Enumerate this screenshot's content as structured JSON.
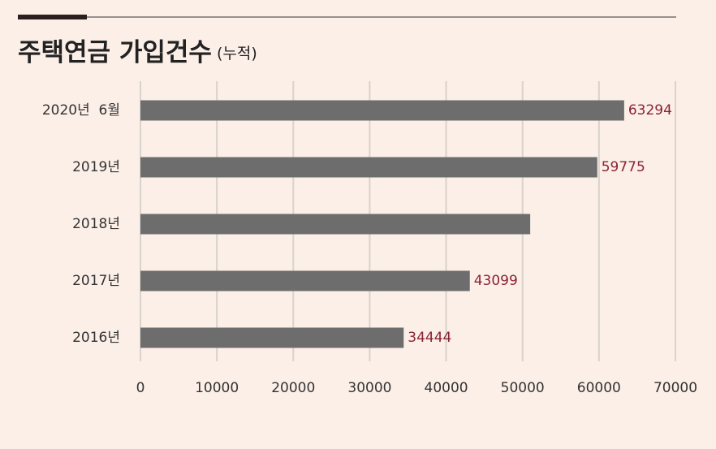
{
  "chart_data": {
    "type": "hbar",
    "title": "주택연금 가입건수",
    "subtitle": "(누적)",
    "categories": [
      "2020년  6월",
      "2019년",
      "2018년",
      "2017년",
      "2016년"
    ],
    "values": [
      63294,
      59775,
      51000,
      43099,
      34444
    ],
    "show_value_label": [
      true,
      true,
      false,
      true,
      true
    ],
    "color": "#6d6d6d",
    "label_color": "#8a2233",
    "xlim": [
      0,
      70000
    ],
    "xticks": [
      0,
      10000,
      20000,
      30000,
      40000,
      50000,
      60000,
      70000
    ],
    "grid": true
  }
}
